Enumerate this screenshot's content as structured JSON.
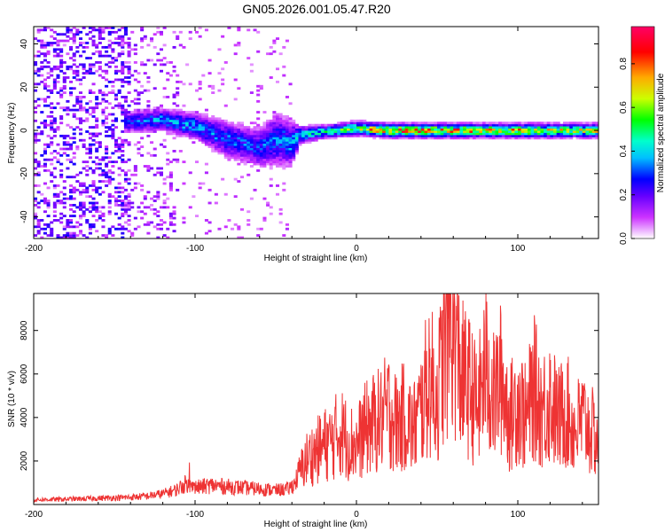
{
  "chart_data": [
    {
      "type": "heatmap",
      "title": "GN05.2026.001.05.47.R20",
      "xlabel": "Height of straight line (km)",
      "ylabel": "Frequency (Hz)",
      "xlim": [
        -200,
        150
      ],
      "ylim": [
        -50,
        48
      ],
      "xticks": [
        -200,
        -100,
        0,
        100
      ],
      "yticks": [
        -40,
        -20,
        0,
        20,
        40
      ],
      "colorbar": {
        "label": "Normalized spectral amplitude",
        "range": [
          0.0,
          0.97
        ],
        "ticks": [
          "0.0",
          "0.2",
          "0.4",
          "0.6",
          "0.8"
        ],
        "colormap": [
          "#ffffff",
          "#cc33ff",
          "#6600ff",
          "#0000ff",
          "#00bfff",
          "#00ffcc",
          "#00ff00",
          "#ccff00",
          "#ffaa00",
          "#ff0000",
          "#ff0066"
        ]
      },
      "signal_track": [
        {
          "x": -140,
          "center": 4,
          "width": 5,
          "amplitude": 0.3
        },
        {
          "x": -120,
          "center": 5,
          "width": 5,
          "amplitude": 0.4
        },
        {
          "x": -100,
          "center": 2,
          "width": 6,
          "amplitude": 0.38
        },
        {
          "x": -80,
          "center": -4,
          "width": 8,
          "amplitude": 0.35
        },
        {
          "x": -60,
          "center": -8,
          "width": 9,
          "amplitude": 0.32
        },
        {
          "x": -50,
          "center": -4,
          "width": 12,
          "amplitude": 0.35
        },
        {
          "x": -40,
          "center": -6,
          "width": 10,
          "amplitude": 0.4
        },
        {
          "x": -35,
          "center": -2,
          "width": 4,
          "amplitude": 0.45
        },
        {
          "x": -20,
          "center": -0.5,
          "width": 3,
          "amplitude": 0.5
        },
        {
          "x": 0,
          "center": 1,
          "width": 3,
          "amplitude": 0.7
        },
        {
          "x": 20,
          "center": 0,
          "width": 3,
          "amplitude": 0.85
        },
        {
          "x": 60,
          "center": 0,
          "width": 3,
          "amplitude": 0.8
        },
        {
          "x": 100,
          "center": 0,
          "width": 3,
          "amplitude": 0.75
        },
        {
          "x": 150,
          "center": 0,
          "width": 3,
          "amplitude": 0.7
        }
      ]
    },
    {
      "type": "line",
      "title": "",
      "xlabel": "Height of straight line (km)",
      "ylabel": "SNR (10 * v/v)",
      "xlim": [
        -200,
        150
      ],
      "ylim": [
        0,
        9700
      ],
      "xticks": [
        -200,
        -100,
        0,
        100
      ],
      "yticks": [
        2000,
        4000,
        6000,
        8000
      ],
      "color": "#ee3333",
      "series": [
        {
          "name": "SNR",
          "x": [
            -200,
            -180,
            -160,
            -140,
            -130,
            -120,
            -112,
            -105,
            -100,
            -90,
            -80,
            -70,
            -60,
            -50,
            -42,
            -38,
            -35,
            -32,
            -30,
            -25,
            -20,
            -15,
            -10,
            -5,
            0,
            5,
            10,
            15,
            20,
            25,
            30,
            35,
            40,
            45,
            50,
            55,
            58,
            60,
            65,
            70,
            75,
            80,
            85,
            90,
            95,
            100,
            105,
            110,
            115,
            120,
            125,
            130,
            135,
            140,
            145,
            150
          ],
          "y": [
            200,
            220,
            260,
            300,
            350,
            450,
            600,
            900,
            700,
            800,
            750,
            700,
            650,
            600,
            650,
            900,
            1500,
            2000,
            2200,
            2500,
            2800,
            3000,
            3500,
            3000,
            2800,
            3500,
            3800,
            4000,
            4500,
            3800,
            4200,
            3500,
            4500,
            6000,
            5000,
            7500,
            9000,
            8500,
            6000,
            5500,
            4500,
            6500,
            5000,
            6000,
            4000,
            5000,
            4000,
            5500,
            4500,
            5000,
            4000,
            4500,
            3500,
            4000,
            3500,
            3000
          ]
        }
      ]
    }
  ]
}
